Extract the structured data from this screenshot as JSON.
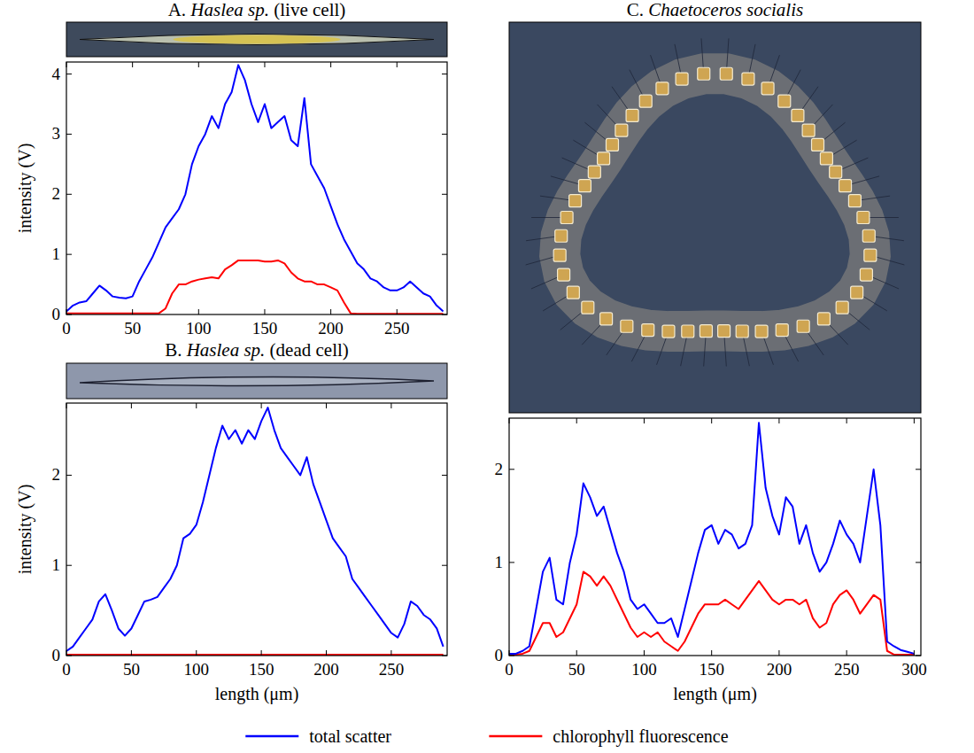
{
  "chart_data": [
    {
      "type": "line",
      "title": "A. Haslea sp. (live cell)",
      "y_label": "intensity (V)",
      "xlim": [
        0,
        288
      ],
      "xticks": [
        0,
        50,
        100,
        150,
        200,
        250
      ],
      "ylim": [
        0,
        4.2
      ],
      "yticks": [
        0,
        1,
        2,
        3,
        4
      ],
      "legend": "bottom",
      "x": [
        0,
        5,
        10,
        15,
        20,
        25,
        30,
        35,
        40,
        45,
        50,
        55,
        60,
        65,
        70,
        75,
        80,
        85,
        90,
        95,
        100,
        105,
        110,
        115,
        120,
        125,
        130,
        135,
        140,
        145,
        150,
        155,
        160,
        165,
        170,
        175,
        180,
        185,
        190,
        195,
        200,
        205,
        210,
        215,
        220,
        225,
        230,
        235,
        240,
        245,
        250,
        255,
        260,
        265,
        270,
        275,
        280,
        285
      ],
      "series": [
        {
          "name": "total scatter",
          "color": "#0000ff",
          "values": [
            0.05,
            0.15,
            0.2,
            0.22,
            0.35,
            0.48,
            0.4,
            0.3,
            0.28,
            0.27,
            0.3,
            0.55,
            0.75,
            0.95,
            1.2,
            1.45,
            1.6,
            1.75,
            2.0,
            2.5,
            2.8,
            3.0,
            3.3,
            3.1,
            3.5,
            3.7,
            4.15,
            3.9,
            3.5,
            3.2,
            3.5,
            3.1,
            3.2,
            3.3,
            2.9,
            2.8,
            3.6,
            2.5,
            2.3,
            2.1,
            1.8,
            1.5,
            1.25,
            1.05,
            0.85,
            0.75,
            0.6,
            0.55,
            0.45,
            0.4,
            0.4,
            0.45,
            0.55,
            0.45,
            0.35,
            0.3,
            0.15,
            0.05
          ]
        },
        {
          "name": "chlorophyll fluorescence",
          "color": "#ff0000",
          "values": [
            0.02,
            0.02,
            0.02,
            0.02,
            0.02,
            0.02,
            0.02,
            0.02,
            0.02,
            0.02,
            0.02,
            0.02,
            0.02,
            0.02,
            0.02,
            0.1,
            0.35,
            0.5,
            0.5,
            0.55,
            0.58,
            0.6,
            0.62,
            0.6,
            0.75,
            0.82,
            0.9,
            0.9,
            0.9,
            0.9,
            0.88,
            0.88,
            0.9,
            0.85,
            0.7,
            0.6,
            0.55,
            0.55,
            0.5,
            0.5,
            0.45,
            0.4,
            0.2,
            0.02,
            0.01,
            0.01,
            0.01,
            0.01,
            0.01,
            0.01,
            0.01,
            0.01,
            0.01,
            0.01,
            0.01,
            0.01,
            0.01,
            0.01
          ]
        }
      ]
    },
    {
      "type": "line",
      "title": "B. Haslea sp. (dead cell)",
      "y_label": "intensity (V)",
      "x_label": "length (μm)",
      "xlim": [
        0,
        293
      ],
      "xticks": [
        0,
        50,
        100,
        150,
        200,
        250
      ],
      "ylim": [
        0,
        2.8
      ],
      "yticks": [
        0,
        1,
        2
      ],
      "x": [
        0,
        5,
        10,
        15,
        20,
        25,
        30,
        35,
        40,
        45,
        50,
        55,
        60,
        65,
        70,
        75,
        80,
        85,
        90,
        95,
        100,
        105,
        110,
        115,
        120,
        125,
        130,
        135,
        140,
        145,
        150,
        155,
        160,
        165,
        170,
        175,
        180,
        185,
        190,
        195,
        200,
        205,
        210,
        215,
        220,
        225,
        230,
        235,
        240,
        245,
        250,
        255,
        260,
        265,
        270,
        275,
        280,
        285,
        290
      ],
      "series": [
        {
          "name": "total scatter",
          "color": "#0000ff",
          "values": [
            0.05,
            0.1,
            0.2,
            0.3,
            0.4,
            0.6,
            0.68,
            0.5,
            0.3,
            0.22,
            0.3,
            0.45,
            0.6,
            0.62,
            0.65,
            0.75,
            0.85,
            1.0,
            1.3,
            1.35,
            1.45,
            1.7,
            2.0,
            2.3,
            2.55,
            2.4,
            2.5,
            2.35,
            2.5,
            2.4,
            2.6,
            2.75,
            2.5,
            2.3,
            2.2,
            2.1,
            2.0,
            2.2,
            1.9,
            1.7,
            1.5,
            1.3,
            1.2,
            1.1,
            0.85,
            0.75,
            0.65,
            0.55,
            0.45,
            0.35,
            0.25,
            0.2,
            0.35,
            0.6,
            0.55,
            0.45,
            0.4,
            0.3,
            0.1
          ]
        },
        {
          "name": "chlorophyll fluorescence",
          "color": "#ff0000",
          "values": [
            0.01,
            0.01,
            0.01,
            0.01,
            0.01,
            0.01,
            0.01,
            0.01,
            0.01,
            0.01,
            0.01,
            0.01,
            0.01,
            0.01,
            0.01,
            0.01,
            0.01,
            0.01,
            0.01,
            0.01,
            0.01,
            0.01,
            0.01,
            0.01,
            0.01,
            0.01,
            0.01,
            0.01,
            0.01,
            0.01,
            0.01,
            0.01,
            0.01,
            0.01,
            0.01,
            0.01,
            0.01,
            0.01,
            0.01,
            0.01,
            0.01,
            0.01,
            0.01,
            0.01,
            0.01,
            0.01,
            0.01,
            0.01,
            0.01,
            0.01,
            0.01,
            0.01,
            0.01,
            0.01,
            0.01,
            0.01,
            0.01,
            0.01,
            0.01
          ]
        }
      ]
    },
    {
      "type": "line",
      "title": "C. Chaetoceros socialis",
      "x_label": "length (μm)",
      "xlim": [
        0,
        305
      ],
      "xticks": [
        0,
        50,
        100,
        150,
        200,
        250,
        300
      ],
      "ylim": [
        0,
        2.55
      ],
      "yticks": [
        0,
        1,
        2
      ],
      "x": [
        0,
        5,
        10,
        15,
        20,
        25,
        30,
        35,
        40,
        45,
        50,
        55,
        60,
        65,
        70,
        75,
        80,
        85,
        90,
        95,
        100,
        105,
        110,
        115,
        120,
        125,
        130,
        135,
        140,
        145,
        150,
        155,
        160,
        165,
        170,
        175,
        180,
        185,
        190,
        195,
        200,
        205,
        210,
        215,
        220,
        225,
        230,
        235,
        240,
        245,
        250,
        255,
        260,
        265,
        270,
        275,
        280,
        285,
        290,
        295,
        300
      ],
      "series": [
        {
          "name": "total scatter",
          "color": "#0000ff",
          "values": [
            0.02,
            0.02,
            0.05,
            0.1,
            0.5,
            0.9,
            1.05,
            0.6,
            0.55,
            1.0,
            1.3,
            1.85,
            1.7,
            1.5,
            1.6,
            1.35,
            1.1,
            0.9,
            0.6,
            0.5,
            0.55,
            0.45,
            0.35,
            0.35,
            0.4,
            0.2,
            0.5,
            0.8,
            1.1,
            1.35,
            1.4,
            1.2,
            1.35,
            1.3,
            1.15,
            1.2,
            1.4,
            2.5,
            1.8,
            1.5,
            1.3,
            1.7,
            1.6,
            1.2,
            1.4,
            1.1,
            0.9,
            1.0,
            1.2,
            1.45,
            1.3,
            1.2,
            1.0,
            1.5,
            2.0,
            1.4,
            0.15,
            0.1,
            0.06,
            0.04,
            0.02
          ]
        },
        {
          "name": "chlorophyll fluorescence",
          "color": "#ff0000",
          "values": [
            0.01,
            0.01,
            0.02,
            0.05,
            0.2,
            0.35,
            0.35,
            0.2,
            0.25,
            0.4,
            0.55,
            0.9,
            0.85,
            0.75,
            0.85,
            0.75,
            0.6,
            0.45,
            0.3,
            0.2,
            0.25,
            0.2,
            0.25,
            0.15,
            0.1,
            0.05,
            0.15,
            0.3,
            0.45,
            0.55,
            0.55,
            0.55,
            0.6,
            0.55,
            0.5,
            0.6,
            0.7,
            0.8,
            0.7,
            0.6,
            0.55,
            0.6,
            0.6,
            0.55,
            0.6,
            0.4,
            0.3,
            0.35,
            0.55,
            0.65,
            0.7,
            0.6,
            0.45,
            0.55,
            0.65,
            0.6,
            0.05,
            0.01,
            0.01,
            0.01,
            0.01
          ]
        }
      ]
    }
  ]
}
